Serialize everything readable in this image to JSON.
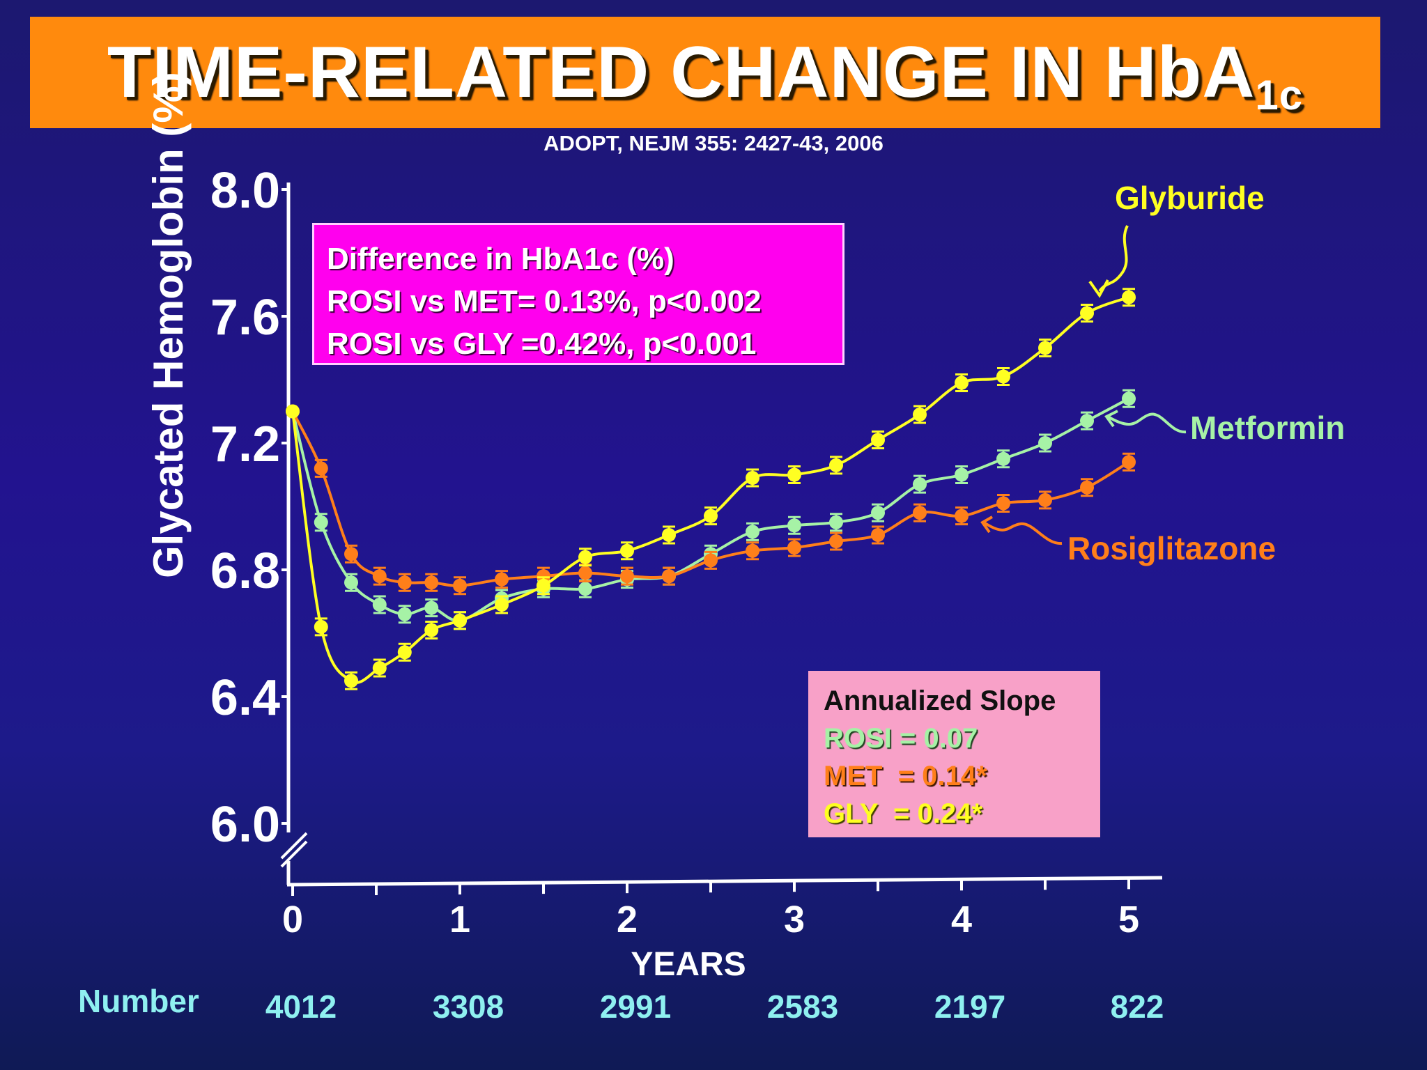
{
  "title": {
    "main": "TIME-RELATED CHANGE IN HbA",
    "subscript": "1c"
  },
  "citation": "ADOPT, NEJM 355: 2427-43, 2006",
  "chart_data": {
    "type": "line",
    "ylabel": "Glycated Hemoglobin (%)",
    "xlabel": "YEARS",
    "y_ticks": [
      "8.0",
      "7.6",
      "7.2",
      "6.8",
      "6.4",
      "6.0"
    ],
    "x_ticks": [
      "0",
      "1",
      "2",
      "3",
      "4",
      "5"
    ],
    "ylim": [
      6.0,
      8.0
    ],
    "xlim": [
      0,
      5
    ],
    "y_axis_break": true,
    "x": [
      0,
      0.17,
      0.35,
      0.52,
      0.67,
      0.83,
      1.0,
      1.25,
      1.5,
      1.75,
      2.0,
      2.25,
      2.5,
      2.75,
      3.0,
      3.25,
      3.5,
      3.75,
      4.0,
      4.25,
      4.5,
      4.75,
      5.0
    ],
    "series": [
      {
        "name": "Glyburide",
        "color": "#ffff22",
        "values": [
          7.3,
          6.62,
          6.45,
          6.49,
          6.54,
          6.61,
          6.64,
          6.69,
          6.75,
          6.84,
          6.86,
          6.91,
          6.97,
          7.09,
          7.1,
          7.13,
          7.21,
          7.29,
          7.39,
          7.41,
          7.5,
          7.61,
          7.66
        ]
      },
      {
        "name": "Metformin",
        "color": "#a6f2a6",
        "values": [
          7.3,
          6.95,
          6.76,
          6.69,
          6.66,
          6.68,
          6.64,
          6.71,
          6.74,
          6.74,
          6.77,
          6.78,
          6.85,
          6.92,
          6.94,
          6.95,
          6.98,
          7.07,
          7.1,
          7.15,
          7.2,
          7.27,
          7.34
        ]
      },
      {
        "name": "Rosiglitazone",
        "color": "#ff7f1a",
        "values": [
          7.3,
          7.12,
          6.85,
          6.78,
          6.76,
          6.76,
          6.75,
          6.77,
          6.78,
          6.79,
          6.78,
          6.78,
          6.83,
          6.86,
          6.87,
          6.89,
          6.91,
          6.98,
          6.97,
          7.01,
          7.02,
          7.06,
          7.14
        ]
      }
    ],
    "number_at_risk": {
      "label": "Number",
      "years": [
        0,
        1,
        2,
        3,
        4,
        5
      ],
      "values": [
        "4012",
        "3308",
        "2991",
        "2583",
        "2197",
        "822"
      ]
    }
  },
  "difference_box": {
    "lines": [
      "Difference in HbA1c (%)",
      "ROSI vs MET= 0.13%, p<0.002",
      "ROSI vs GLY =0.42%, p<0.001"
    ]
  },
  "slope_box": {
    "heading": "Annualized Slope",
    "rosi": "ROSI = 0.07",
    "met": "MET  = 0.14*",
    "gly": "GLY  = 0.24*"
  },
  "colors": {
    "background": "#22138f",
    "banner": "#ff8a0d",
    "difference_box": "#ff00ee",
    "slope_box": "#f8a1c8"
  }
}
